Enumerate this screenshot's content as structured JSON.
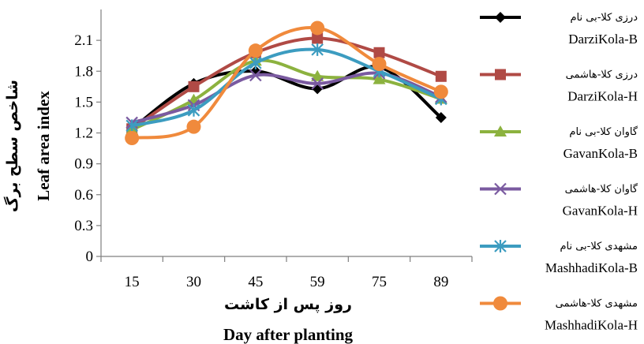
{
  "chart_data": {
    "type": "line",
    "x": [
      "15",
      "30",
      "45",
      "59",
      "75",
      "89"
    ],
    "xlabel_fa": "روز پس از کاشت",
    "xlabel_en": "Day after planting",
    "ylabel_fa": "شاخص سطح برگ",
    "ylabel_en": "Leaf area index",
    "ylim": [
      0,
      2.4
    ],
    "yticks": [
      "0",
      "0.3",
      "0.6",
      "0.9",
      "1.2",
      "1.5",
      "1.8",
      "2.1"
    ],
    "grid": false,
    "legend_position": "right",
    "series": [
      {
        "name_fa": "درزی کلا-بی نام",
        "name": "DarziKola-B",
        "color": "#000000",
        "marker": "diamond",
        "values": [
          1.24,
          1.68,
          1.8,
          1.63,
          1.84,
          1.35
        ]
      },
      {
        "name_fa": "درزی کلا-هاشمی",
        "name": "DarziKola-H",
        "color": "#b04a45",
        "marker": "square",
        "values": [
          1.24,
          1.65,
          1.98,
          2.12,
          1.98,
          1.75
        ]
      },
      {
        "name_fa": "گاوان کلا-بی نام",
        "name": "GavanKola-B",
        "color": "#8cb23f",
        "marker": "triangle",
        "values": [
          1.23,
          1.52,
          1.9,
          1.75,
          1.72,
          1.53
        ]
      },
      {
        "name_fa": "گاوان کلا-هاشمی",
        "name": "GavanKola-H",
        "color": "#7a5aa0",
        "marker": "x",
        "values": [
          1.3,
          1.47,
          1.76,
          1.68,
          1.78,
          1.55
        ]
      },
      {
        "name_fa": "مشهدی کلا-بی نام",
        "name": "MashhadiKola-B",
        "color": "#3c9cc0",
        "marker": "star",
        "values": [
          1.27,
          1.42,
          1.88,
          2.01,
          1.8,
          1.53
        ]
      },
      {
        "name_fa": "مشهدی کلا-هاشمی",
        "name": "MashhadiKola-H",
        "color": "#f08a3c",
        "marker": "circle",
        "values": [
          1.15,
          1.26,
          2.0,
          2.22,
          1.87,
          1.6
        ]
      }
    ]
  }
}
